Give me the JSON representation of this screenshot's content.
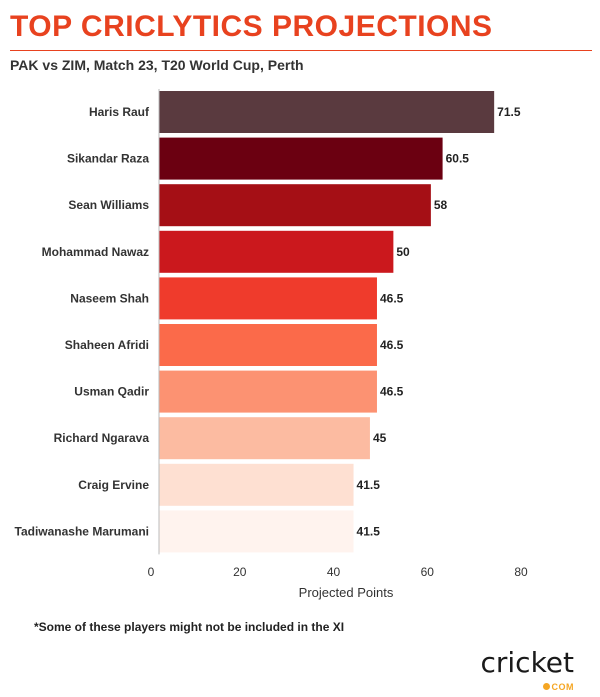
{
  "header": {
    "title": "TOP CRICLYTICS PROJECTIONS",
    "subtitle": "PAK vs ZIM, Match 23, T20 World Cup, Perth"
  },
  "chart_data": {
    "type": "bar",
    "orientation": "horizontal",
    "categories": [
      "Haris Rauf",
      "Sikandar Raza",
      "Sean Williams",
      "Mohammad Nawaz",
      "Naseem Shah",
      "Shaheen Afridi",
      "Usman Qadir",
      "Richard Ngarava",
      "Craig Ervine",
      "Tadiwanashe Marumani"
    ],
    "values": [
      71.5,
      60.5,
      58,
      50,
      46.5,
      46.5,
      46.5,
      45,
      41.5,
      41.5
    ],
    "value_labels": [
      "71.5",
      "60.5",
      "58",
      "50",
      "46.5",
      "46.5",
      "46.5",
      "45",
      "41.5",
      "41.5"
    ],
    "colors": [
      "#5a3a3f",
      "#6b0011",
      "#a50f15",
      "#cb181d",
      "#ef3b2c",
      "#fb6a4a",
      "#fc9272",
      "#fcbba1",
      "#fee0d2",
      "#fff3ee"
    ],
    "xlabel": "Projected Points",
    "ylabel": "",
    "xlim": [
      0,
      80
    ],
    "xticks": [
      0,
      20,
      40,
      60,
      80
    ],
    "grid": false
  },
  "footnote": "*Some of these players might not be included in the XI",
  "logo": {
    "text": "cricket",
    "sub": "COM"
  }
}
